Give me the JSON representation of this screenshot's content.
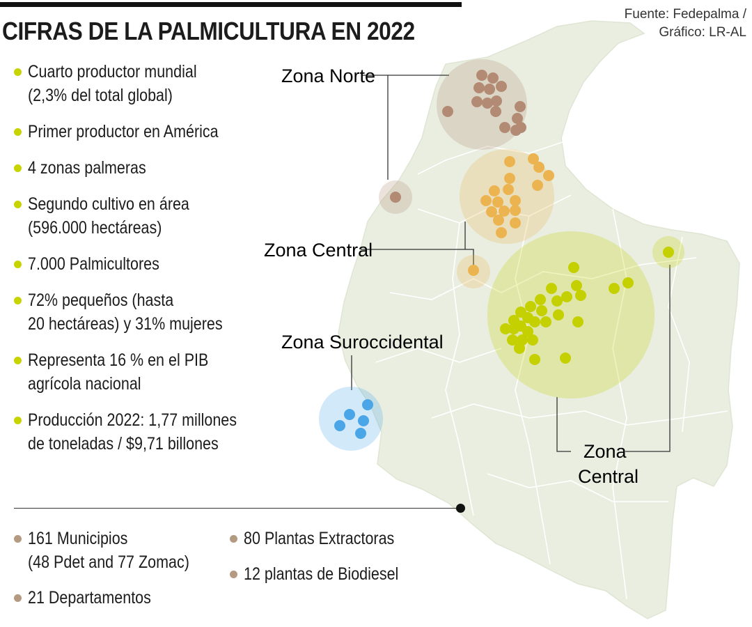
{
  "header": {
    "title": "CIFRAS DE LA PALMICULTURA EN 2022",
    "source_line1": "Fuente: Fedepalma /",
    "source_line2": "Gráfico: LR-AL"
  },
  "colors": {
    "map_land": "#e9eee0",
    "map_border": "#ffffff",
    "bullet_main": "#c8d400",
    "bullet_secondary": "#b59a82",
    "zona_norte": "#b38a74",
    "zona_central_oriental": "#c4d000",
    "zona_central": "#ecb450",
    "zona_suroccidental": "#4aa6e6",
    "leader_line": "#333333"
  },
  "facts": [
    {
      "lines": [
        "Cuarto productor mundial",
        "(2,3% del total global)"
      ]
    },
    {
      "lines": [
        "Primer productor en América"
      ]
    },
    {
      "lines": [
        "4 zonas palmeras"
      ]
    },
    {
      "lines": [
        "Segundo cultivo en área",
        "(596.000 hectáreas)"
      ]
    },
    {
      "lines": [
        "7.000 Palmicultores"
      ]
    },
    {
      "lines": [
        "72% pequeños (hasta",
        "20 hectáreas) y 31% mujeres"
      ]
    },
    {
      "lines": [
        "Representa 16 % en el PIB",
        "agrícola nacional"
      ]
    },
    {
      "lines": [
        "Producción 2022: 1,77 millones",
        "de toneladas  / $9,71 billones"
      ]
    }
  ],
  "stats_left": [
    {
      "lines": [
        "161 Municipios",
        "(48 Pdet and 77 Zomac)"
      ]
    },
    {
      "lines": [
        "21 Departamentos"
      ]
    }
  ],
  "stats_right": [
    {
      "lines": [
        "80 Plantas Extractoras"
      ]
    },
    {
      "lines": [
        "12 plantas de Biodiesel"
      ]
    }
  ],
  "zones": {
    "norte": {
      "label": "Zona Norte"
    },
    "central_west": {
      "label": "Zona Central"
    },
    "suroccidental": {
      "label": "Zona Suroccidental"
    },
    "central_east": {
      "label_line1": "Zona",
      "label_line2": "Central"
    }
  }
}
